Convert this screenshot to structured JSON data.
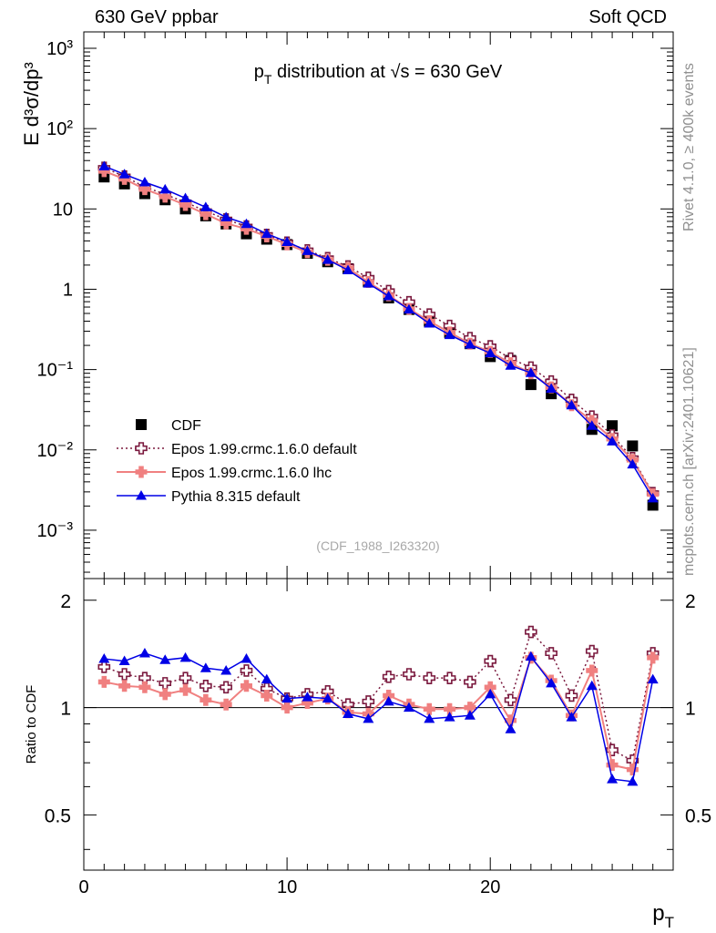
{
  "header": {
    "left": "630 GeV ppbar",
    "right": "Soft QCD"
  },
  "side_labels": {
    "top": "Rivet 4.1.0, ≥ 400k events",
    "bottom": "mcplots.cern.ch [arXiv:2401.10621]"
  },
  "chart_data": {
    "type": "scatter",
    "title": "p_T distribution at √s = 630 GeV",
    "analysis_label": "(CDF_1988_I263320)",
    "xlabel": "p_T",
    "ylabel": "E d³σ/dp³",
    "ratio_ylabel": "Ratio to CDF",
    "xlim": [
      0,
      29
    ],
    "ylim": [
      0.00025,
      1600
    ],
    "ratio_ylim": [
      0.35,
      2.3
    ],
    "y_log": true,
    "ratio_log": true,
    "x_ticks": [
      0,
      10,
      20
    ],
    "y_ticks": [
      "10⁻³",
      "10⁻²",
      "10⁻¹",
      "1",
      "10",
      "10²",
      "10³"
    ],
    "ratio_ticks": [
      "0.5",
      "1",
      "2"
    ],
    "x": [
      1,
      2,
      3,
      4,
      5,
      6,
      7,
      8,
      9,
      10,
      11,
      12,
      13,
      14,
      15,
      16,
      17,
      18,
      19,
      20,
      21,
      22,
      23,
      24,
      25,
      26,
      27,
      28
    ],
    "series": [
      {
        "name": "CDF",
        "marker": "square",
        "color": "#000000",
        "values": [
          25,
          20.5,
          15.5,
          13,
          10,
          8.2,
          6.5,
          4.9,
          4.2,
          3.6,
          2.8,
          2.2,
          1.8,
          1.25,
          0.78,
          0.56,
          0.4,
          0.29,
          0.21,
          0.145,
          0.13,
          0.065,
          0.05,
          0.039,
          0.018,
          0.02,
          0.0112,
          0.00205
        ],
        "ratio": [
          1,
          1,
          1,
          1,
          1,
          1,
          1,
          1,
          1,
          1,
          1,
          1,
          1,
          1,
          1,
          1,
          1,
          1,
          1,
          1,
          1,
          1,
          1,
          1,
          1,
          1,
          1,
          1
        ]
      },
      {
        "name": "Epos 1.99.crmc.1.6.0 default",
        "marker": "open-cross",
        "color": "#7b1a3f",
        "values": [
          32.5,
          25.4,
          18.8,
          15.2,
          12.1,
          9.4,
          7.4,
          6.05,
          4.75,
          3.81,
          3.05,
          2.44,
          1.92,
          1.39,
          0.95,
          0.69,
          0.485,
          0.35,
          0.247,
          0.195,
          0.137,
          0.106,
          0.071,
          0.042,
          0.026,
          0.0152,
          0.0079,
          0.0029
        ],
        "ratio": [
          1.3,
          1.24,
          1.21,
          1.17,
          1.21,
          1.15,
          1.14,
          1.27,
          1.13,
          1.06,
          1.09,
          1.11,
          1.02,
          1.04,
          1.22,
          1.24,
          1.21,
          1.21,
          1.18,
          1.35,
          1.05,
          1.63,
          1.42,
          1.08,
          1.44,
          0.76,
          0.71,
          1.42
        ]
      },
      {
        "name": "Epos 1.99.crmc.1.6.0 lhc",
        "marker": "filled-cross",
        "color": "#f08080",
        "values": [
          29.5,
          23.6,
          17.6,
          14.2,
          11.2,
          8.6,
          6.6,
          5.65,
          4.55,
          3.62,
          2.89,
          2.33,
          1.84,
          1.23,
          0.84,
          0.57,
          0.4,
          0.29,
          0.21,
          0.166,
          0.12,
          0.09,
          0.06,
          0.036,
          0.023,
          0.0137,
          0.0075,
          0.0028
        ],
        "ratio": [
          1.18,
          1.15,
          1.14,
          1.09,
          1.12,
          1.05,
          1.02,
          1.15,
          1.08,
          1.0,
          1.03,
          1.06,
          0.97,
          0.96,
          1.08,
          1.02,
          0.99,
          0.99,
          1.0,
          1.14,
          0.92,
          1.38,
          1.19,
          0.95,
          1.27,
          0.69,
          0.67,
          1.38
        ]
      },
      {
        "name": "Pythia 8.315 default",
        "marker": "triangle",
        "color": "#0000e6",
        "values": [
          34,
          27,
          21.5,
          17.5,
          13.6,
          10.5,
          7.9,
          6.5,
          4.9,
          3.89,
          3.0,
          2.33,
          1.73,
          1.18,
          0.82,
          0.56,
          0.375,
          0.27,
          0.205,
          0.16,
          0.112,
          0.091,
          0.058,
          0.036,
          0.02,
          0.0128,
          0.0066,
          0.0025
        ],
        "ratio": [
          1.37,
          1.35,
          1.42,
          1.36,
          1.38,
          1.29,
          1.27,
          1.37,
          1.2,
          1.06,
          1.07,
          1.06,
          0.96,
          0.93,
          1.04,
          1.0,
          0.93,
          0.94,
          0.95,
          1.09,
          0.87,
          1.39,
          1.17,
          0.94,
          1.15,
          0.63,
          0.62,
          1.2
        ]
      }
    ]
  }
}
